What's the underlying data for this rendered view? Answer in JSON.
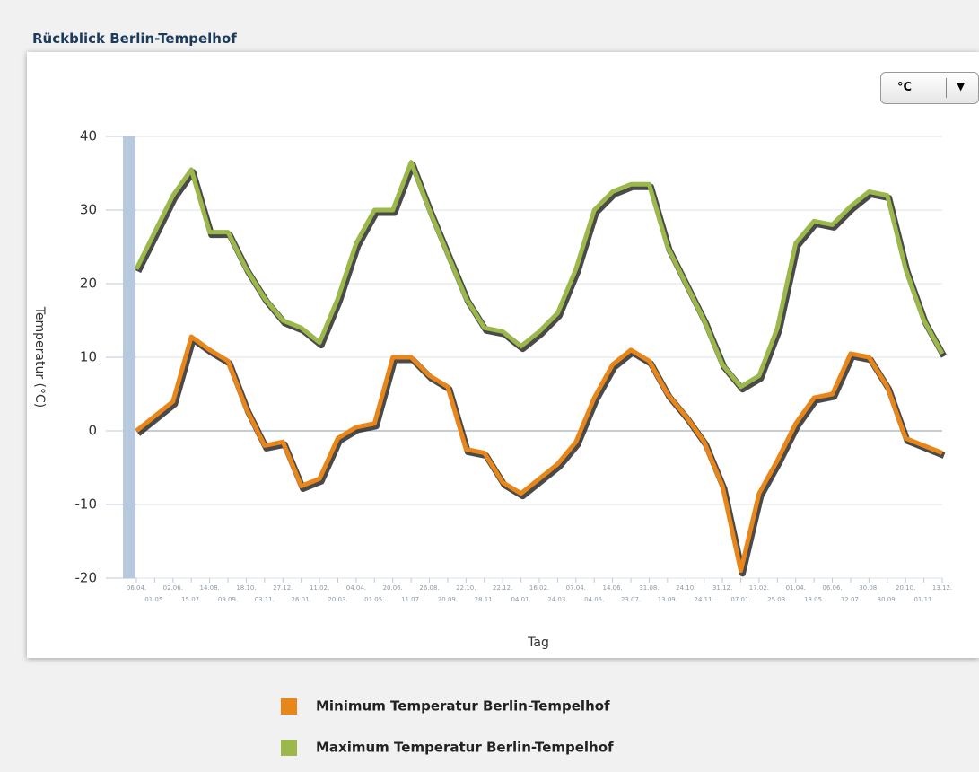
{
  "page_title": "Rückblick Berlin-Tempelhof",
  "unit_button": "°C",
  "chart_data": {
    "type": "line",
    "y_label": "Temperatur (°C)",
    "x_label": "Tag",
    "categories": [
      "06.04.",
      "01.05.",
      "02.06.",
      "15.07.",
      "14.08.",
      "09.09.",
      "18.10.",
      "03.11.",
      "27.12.",
      "26.01.",
      "11.02.",
      "20.03.",
      "04.04.",
      "01.05.",
      "20.06.",
      "11.07.",
      "26.08.",
      "20.09.",
      "22.10.",
      "28.11.",
      "22.12.",
      "04.01.",
      "16.02.",
      "24.03.",
      "07.04.",
      "04.05.",
      "14.06.",
      "23.07.",
      "31.08.",
      "13.09.",
      "24.10.",
      "24.11.",
      "31.12.",
      "07.01.",
      "17.02.",
      "25.03.",
      "01.04.",
      "13.05.",
      "06.06.",
      "12.07.",
      "30.08.",
      "30.09.",
      "20.10.",
      "01.11.",
      "13.12."
    ],
    "series": [
      {
        "name": "Minimum Temperatur Berlin-Tempelhof",
        "color": "#e8861a",
        "values": [
          0,
          2,
          4,
          12.8,
          11,
          9.5,
          3,
          -2,
          -1.5,
          -7.5,
          -6.5,
          -1,
          0.5,
          1,
          10,
          10,
          7.5,
          6,
          -2.5,
          -3,
          -7,
          -8.5,
          -6.5,
          -4.5,
          -1.5,
          4.5,
          9,
          11,
          9.5,
          5,
          2,
          -1.5,
          -7.5,
          -19,
          -8.5,
          -4,
          1,
          4.5,
          5,
          10.5,
          10,
          6,
          -1,
          -2,
          -3
        ]
      },
      {
        "name": "Maximum Temperatur Berlin-Tempelhof",
        "color": "#9cb84a",
        "values": [
          22,
          27,
          32,
          35.5,
          27,
          27,
          22,
          18,
          15,
          14,
          12,
          18,
          25.5,
          30,
          30,
          36.5,
          30,
          24,
          18,
          14,
          13.5,
          11.5,
          13.5,
          16,
          22,
          30,
          32.5,
          33.5,
          33.5,
          25,
          20,
          15,
          9,
          6,
          7.5,
          14,
          25.5,
          28.5,
          28,
          30.5,
          32.5,
          32,
          22,
          15,
          10.5
        ]
      }
    ],
    "ylim": [
      -20,
      40
    ],
    "yticks": [
      -20,
      -10,
      0,
      10,
      20,
      30,
      40
    ],
    "grid": true
  }
}
